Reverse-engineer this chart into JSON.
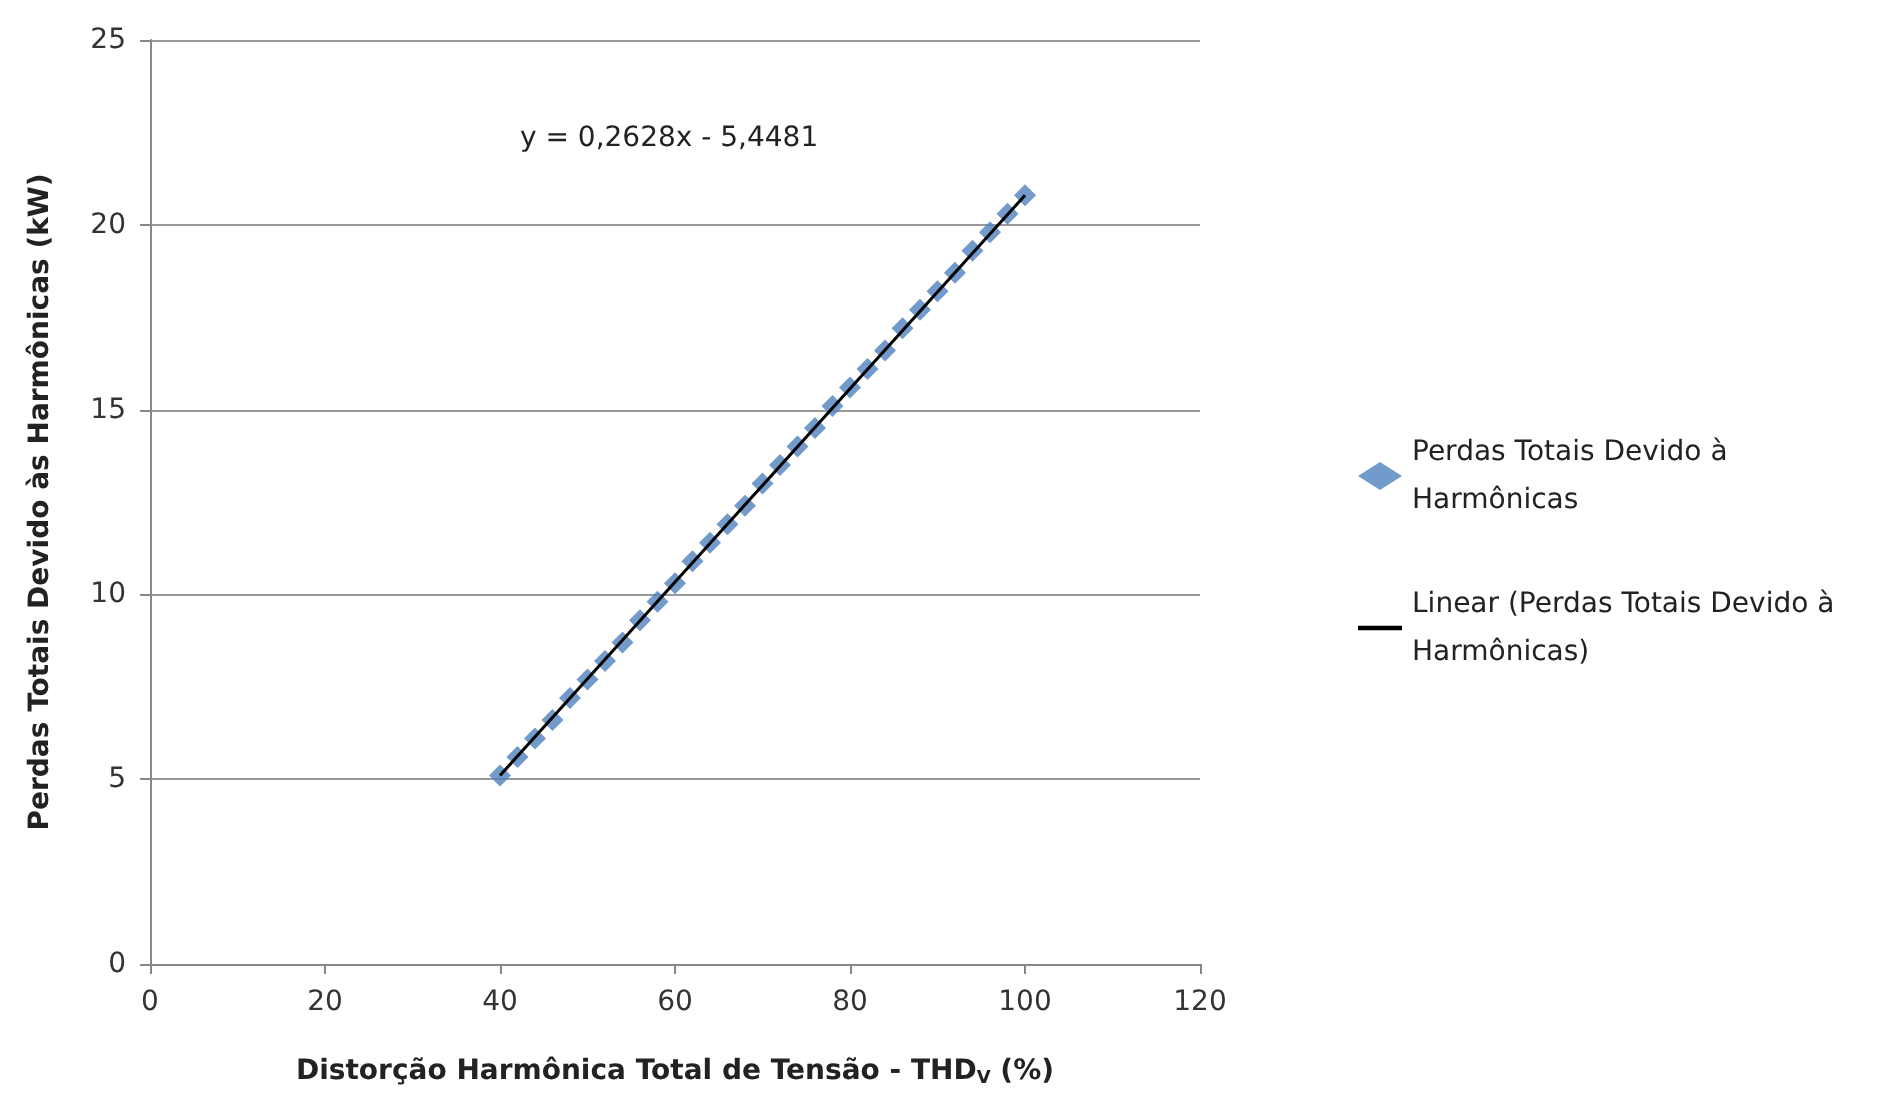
{
  "chart_data": {
    "type": "scatter",
    "xlabel": "Distorção Harmônica Total de Tensão - THD$_{V}$ (%)",
    "ylabel": "Perdas Totais Devido às Harmônicas (kW)",
    "annotations": [
      "y = 0,2628x - 5,4481"
    ],
    "x": [
      40,
      42,
      44,
      46,
      48,
      50,
      52,
      54,
      56,
      58,
      60,
      62,
      64,
      66,
      68,
      70,
      72,
      74,
      76,
      78,
      80,
      82,
      84,
      86,
      88,
      90,
      92,
      94,
      96,
      98,
      100
    ],
    "series": [
      {
        "name": "Perdas Totais Devido à Harmônicas",
        "color": "#4f81bd",
        "marker": "diamond",
        "values": [
          5.1,
          5.6,
          6.1,
          6.6,
          7.2,
          7.7,
          8.2,
          8.7,
          9.3,
          9.8,
          10.3,
          10.9,
          11.4,
          11.9,
          12.4,
          13.0,
          13.5,
          14.0,
          14.5,
          15.1,
          15.6,
          16.1,
          16.6,
          17.2,
          17.7,
          18.2,
          18.7,
          19.3,
          19.8,
          20.3,
          20.8
        ]
      },
      {
        "name": "Linear (Perdas Totais Devido à Harmônicas)",
        "type": "line",
        "color": "#000000",
        "marker": "none",
        "x": [
          40,
          100
        ],
        "values": [
          5.1,
          20.8
        ]
      }
    ],
    "xlim": [
      0,
      120
    ],
    "xticks": [
      0,
      20,
      40,
      60,
      80,
      100,
      120
    ],
    "ylim": [
      0,
      25
    ],
    "yticks": [
      0,
      5,
      10,
      15,
      20,
      25
    ],
    "grid": "y",
    "legend": "right"
  }
}
